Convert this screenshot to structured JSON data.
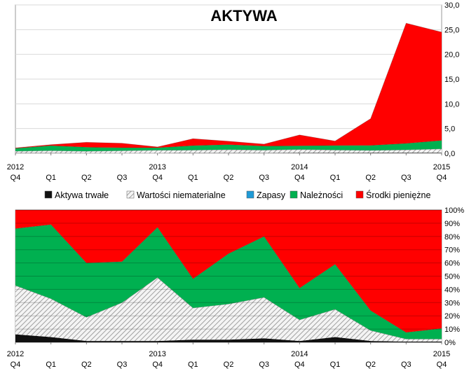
{
  "chart_data": [
    {
      "type": "area",
      "stacked": true,
      "title": "AKTYWA",
      "x_top": [
        "2012",
        "",
        "",
        "",
        "2013",
        "",
        "",
        "",
        "2014",
        "",
        "",
        "",
        "2015"
      ],
      "x_bottom": [
        "Q4",
        "Q1",
        "Q2",
        "Q3",
        "Q4",
        "Q1",
        "Q2",
        "Q3",
        "Q4",
        "Q1",
        "Q2",
        "Q3",
        "Q4"
      ],
      "ylim": [
        0,
        30
      ],
      "yticks": [
        "30,0",
        "25,0",
        "20,0",
        "15,0",
        "10,0",
        "5,0",
        "0,0"
      ],
      "y_axis_side": "right",
      "grid": true,
      "series": [
        {
          "name": "Aktywa trwałe",
          "color": "#111111",
          "values": [
            0.05,
            0.05,
            0.03,
            0.03,
            0.04,
            0.05,
            0.05,
            0.06,
            0.07,
            0.08,
            0.1,
            0.1,
            0.1
          ]
        },
        {
          "name": "Wartości niematerialne",
          "color": "#b8b8b8",
          "values": [
            0.4,
            0.5,
            0.4,
            0.5,
            0.6,
            0.6,
            0.7,
            0.6,
            0.7,
            0.6,
            0.5,
            0.6,
            0.8
          ]
        },
        {
          "name": "Zapasy",
          "color": "#1f9ad6",
          "values": [
            0,
            0,
            0,
            0,
            0,
            0,
            0,
            0,
            0,
            0,
            0,
            0,
            0
          ]
        },
        {
          "name": "Należności",
          "color": "#00b050",
          "values": [
            0.55,
            1.0,
            0.8,
            0.6,
            0.5,
            0.9,
            1.0,
            0.8,
            0.75,
            0.9,
            1.0,
            1.3,
            1.7
          ]
        },
        {
          "name": "Środki pieniężne",
          "color": "#ff0000",
          "values": [
            0.1,
            0.2,
            1.0,
            0.9,
            0.15,
            1.4,
            0.7,
            0.4,
            2.2,
            0.9,
            5.4,
            24.3,
            21.9
          ]
        }
      ]
    },
    {
      "type": "area",
      "stacked": true,
      "percent": true,
      "x_top": [
        "2012",
        "",
        "",
        "",
        "2013",
        "",
        "",
        "",
        "2014",
        "",
        "",
        "",
        "2015"
      ],
      "x_bottom": [
        "Q4",
        "Q1",
        "Q2",
        "Q3",
        "Q4",
        "Q1",
        "Q2",
        "Q3",
        "Q4",
        "Q1",
        "Q2",
        "Q3",
        "Q4"
      ],
      "ylim": [
        0,
        100
      ],
      "yticks": [
        "100%",
        "90%",
        "80%",
        "70%",
        "60%",
        "50%",
        "40%",
        "30%",
        "20%",
        "10%",
        "0%"
      ],
      "y_axis_side": "right",
      "grid": true,
      "series": [
        {
          "name": "Aktywa trwałe",
          "color": "#111111",
          "values": [
            6,
            4,
            1,
            1,
            1,
            2,
            2,
            3,
            1,
            4,
            1,
            0.5,
            0.5
          ]
        },
        {
          "name": "Wartości niematerialne",
          "color": "#b8b8b8",
          "values": [
            37,
            29,
            18,
            29,
            48,
            24,
            27,
            31,
            16,
            21,
            8,
            2,
            2
          ]
        },
        {
          "name": "Zapasy",
          "color": "#1f9ad6",
          "values": [
            0,
            0,
            0,
            0,
            0,
            0,
            0,
            0,
            0,
            0,
            0,
            0,
            0
          ]
        },
        {
          "name": "Należności",
          "color": "#00b050",
          "values": [
            43,
            56,
            41,
            31,
            38,
            22,
            38,
            46,
            24,
            34,
            15,
            5,
            8
          ]
        },
        {
          "name": "Środki pieniężne",
          "color": "#ff0000",
          "values": [
            14,
            11,
            40,
            39,
            13,
            52,
            33,
            20,
            59,
            41,
            76,
            92.5,
            89.5
          ]
        }
      ]
    }
  ],
  "legend": [
    {
      "label": "Aktywa trwałe",
      "color": "#111111",
      "icon": "black-square-icon"
    },
    {
      "label": "Wartości niematerialne",
      "color": "#b8b8b8",
      "icon": "hatched-square-icon"
    },
    {
      "label": "Zapasy",
      "color": "#1f9ad6",
      "icon": "blue-square-icon"
    },
    {
      "label": "Należności",
      "color": "#00b050",
      "icon": "green-square-icon"
    },
    {
      "label": "Środki pieniężne",
      "color": "#ff0000",
      "icon": "red-square-icon"
    }
  ]
}
